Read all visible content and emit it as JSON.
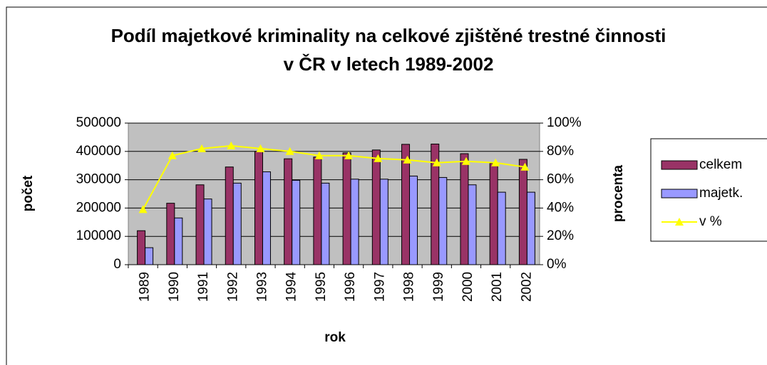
{
  "chart_data": {
    "type": "bar-line",
    "title": "Podíl majetkové kriminality na celkové zjištěné trestné činnosti v ČR v letech 1989-2002",
    "x_label": "rok",
    "y_label": "počet",
    "y2_label": "procenta",
    "categories": [
      "1989",
      "1990",
      "1991",
      "1992",
      "1993",
      "1994",
      "1995",
      "1996",
      "1997",
      "1998",
      "1999",
      "2000",
      "2001",
      "2002"
    ],
    "series": [
      {
        "name": "celkem",
        "color": "#993366",
        "type": "bar",
        "values": [
          120000,
          217000,
          282000,
          345000,
          400000,
          374000,
          380000,
          395000,
          405000,
          425000,
          426000,
          392000,
          358000,
          372000
        ]
      },
      {
        "name": "majetk.",
        "color": "#9999ff",
        "type": "bar",
        "values": [
          60000,
          165000,
          232000,
          288000,
          328000,
          298000,
          288000,
          302000,
          302000,
          313000,
          308000,
          282000,
          256000,
          256000
        ]
      },
      {
        "name": "v %",
        "color": "#ffff00",
        "type": "line",
        "axis": "y2",
        "values": [
          39,
          77,
          82,
          84,
          82,
          80,
          77,
          77,
          75,
          74,
          72,
          73,
          72,
          69
        ]
      }
    ],
    "ylim": [
      0,
      500000
    ],
    "yticks": [
      0,
      100000,
      200000,
      300000,
      400000,
      500000
    ],
    "y2lim": [
      0,
      100
    ],
    "y2ticks": [
      {
        "value": 0,
        "label": "0%"
      },
      {
        "value": 20,
        "label": "20%"
      },
      {
        "value": 40,
        "label": "40%"
      },
      {
        "value": 60,
        "label": "60%"
      },
      {
        "value": 80,
        "label": "80%"
      },
      {
        "value": 100,
        "label": "100%"
      }
    ],
    "plot_background": "#c0c0c0",
    "legend": "right"
  }
}
